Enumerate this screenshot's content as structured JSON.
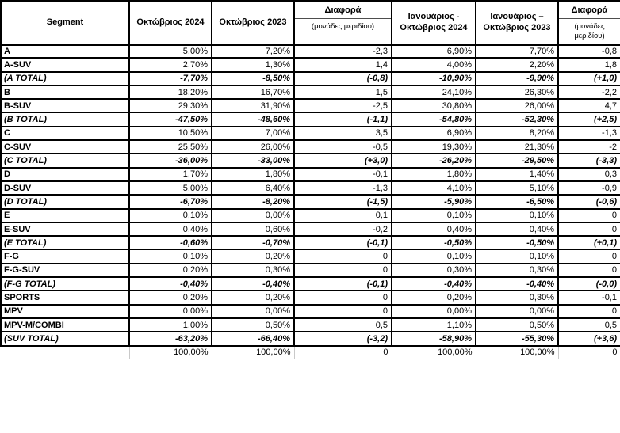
{
  "colors": {
    "border": "#000000",
    "light_grid": "#c9c9c9",
    "text": "#000000",
    "background": "#ffffff"
  },
  "table": {
    "columns": [
      {
        "label": "Segment"
      },
      {
        "label": "Οκτώβριος 2024"
      },
      {
        "label": "Οκτώβριος 2023"
      },
      {
        "label": "Διαφορά",
        "sublabel": "(μονάδες μεριδίου)"
      },
      {
        "label": "Ιανουάριος - Οκτώβριος 2024"
      },
      {
        "label": "Ιανουάριος – Οκτώβριος 2023"
      },
      {
        "label": "Διαφορά",
        "sublabel": "(μονάδες μεριδίου)"
      }
    ],
    "rows": [
      {
        "segment": "A",
        "type": "normal",
        "values": [
          "5,00%",
          "7,20%",
          "-2,3",
          "6,90%",
          "7,70%",
          "-0,8"
        ]
      },
      {
        "segment": "A-SUV",
        "type": "normal",
        "values": [
          "2,70%",
          "1,30%",
          "1,4",
          "4,00%",
          "2,20%",
          "1,8"
        ]
      },
      {
        "segment": "(A TOTAL)",
        "type": "total",
        "values": [
          "-7,70%",
          "-8,50%",
          "(-0,8)",
          "-10,90%",
          "-9,90%",
          "(+1,0)"
        ]
      },
      {
        "segment": "B",
        "type": "normal",
        "values": [
          "18,20%",
          "16,70%",
          "1,5",
          "24,10%",
          "26,30%",
          "-2,2"
        ]
      },
      {
        "segment": "B-SUV",
        "type": "normal",
        "values": [
          "29,30%",
          "31,90%",
          "-2,5",
          "30,80%",
          "26,00%",
          "4,7"
        ]
      },
      {
        "segment": "(B TOTAL)",
        "type": "total",
        "values": [
          "-47,50%",
          "-48,60%",
          "(-1,1)",
          "-54,80%",
          "-52,30%",
          "(+2,5)"
        ]
      },
      {
        "segment": "C",
        "type": "normal",
        "values": [
          "10,50%",
          "7,00%",
          "3,5",
          "6,90%",
          "8,20%",
          "-1,3"
        ]
      },
      {
        "segment": "C-SUV",
        "type": "normal",
        "values": [
          "25,50%",
          "26,00%",
          "-0,5",
          "19,30%",
          "21,30%",
          "-2"
        ]
      },
      {
        "segment": "(C TOTAL)",
        "type": "total",
        "values": [
          "-36,00%",
          "-33,00%",
          "(+3,0)",
          "-26,20%",
          "-29,50%",
          "(-3,3)"
        ]
      },
      {
        "segment": "D",
        "type": "normal",
        "values": [
          "1,70%",
          "1,80%",
          "-0,1",
          "1,80%",
          "1,40%",
          "0,3"
        ]
      },
      {
        "segment": "D-SUV",
        "type": "normal",
        "values": [
          "5,00%",
          "6,40%",
          "-1,3",
          "4,10%",
          "5,10%",
          "-0,9"
        ]
      },
      {
        "segment": "(D TOTAL)",
        "type": "total",
        "values": [
          "-6,70%",
          "-8,20%",
          "(-1,5)",
          "-5,90%",
          "-6,50%",
          "(-0,6)"
        ]
      },
      {
        "segment": "E",
        "type": "normal",
        "values": [
          "0,10%",
          "0,00%",
          "0,1",
          "0,10%",
          "0,10%",
          "0"
        ]
      },
      {
        "segment": "E-SUV",
        "type": "normal",
        "values": [
          "0,40%",
          "0,60%",
          "-0,2",
          "0,40%",
          "0,40%",
          "0"
        ]
      },
      {
        "segment": "(E TOTAL)",
        "type": "total",
        "values": [
          "-0,60%",
          "-0,70%",
          "(-0,1)",
          "-0,50%",
          "-0,50%",
          "(+0,1)"
        ]
      },
      {
        "segment": "F-G",
        "type": "normal",
        "values": [
          "0,10%",
          "0,20%",
          "0",
          "0,10%",
          "0,10%",
          "0"
        ]
      },
      {
        "segment": "F-G-SUV",
        "type": "normal",
        "values": [
          "0,20%",
          "0,30%",
          "0",
          "0,30%",
          "0,30%",
          "0"
        ]
      },
      {
        "segment": "(F-G TOTAL)",
        "type": "total",
        "values": [
          "-0,40%",
          "-0,40%",
          "(-0,1)",
          "-0,40%",
          "-0,40%",
          "(-0,0)"
        ]
      },
      {
        "segment": "SPORTS",
        "type": "normal",
        "values": [
          "0,20%",
          "0,20%",
          "0",
          "0,20%",
          "0,30%",
          "-0,1"
        ]
      },
      {
        "segment": "MPV",
        "type": "normal",
        "values": [
          "0,00%",
          "0,00%",
          "0",
          "0,00%",
          "0,00%",
          "0"
        ]
      },
      {
        "segment": "MPV-M/COMBI",
        "type": "normal",
        "values": [
          "1,00%",
          "0,50%",
          "0,5",
          "1,10%",
          "0,50%",
          "0,5"
        ]
      },
      {
        "segment": "(SUV TOTAL)",
        "type": "total",
        "values": [
          "-63,20%",
          "-66,40%",
          "(-3,2)",
          "-58,90%",
          "-55,30%",
          "(+3,6)"
        ]
      },
      {
        "segment": "",
        "type": "grand",
        "values": [
          "100,00%",
          "100,00%",
          "0",
          "100,00%",
          "100,00%",
          "0"
        ]
      }
    ]
  }
}
